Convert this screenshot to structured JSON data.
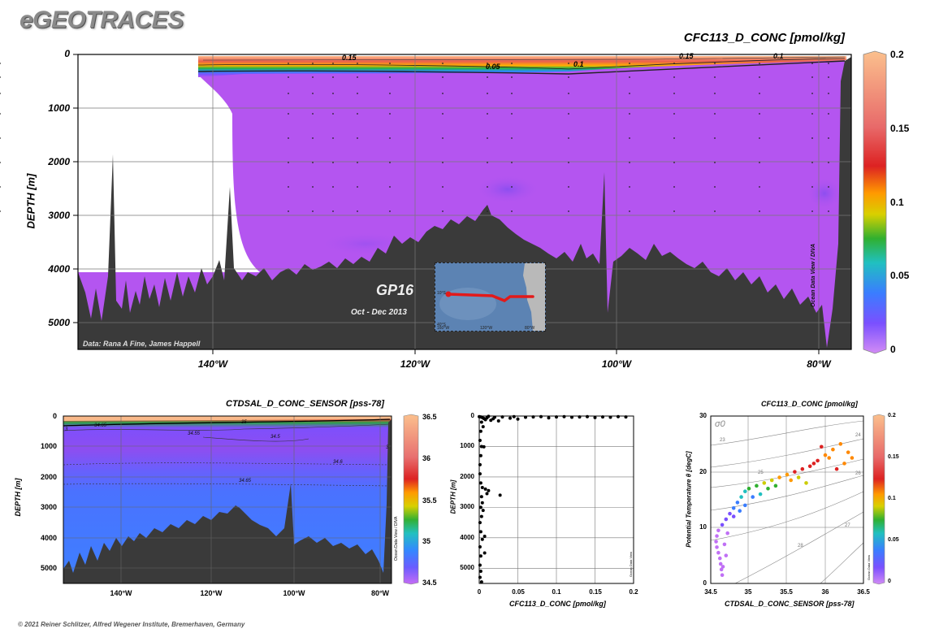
{
  "app": {
    "logo": "eGEOTRACES",
    "footer": "© 2021 Reiner Schlitzer, Alfred Wegener Institute, Bremerhaven, Germany"
  },
  "main_section": {
    "title": "CFC113_D_CONC [pmol/kg]",
    "ylabel": "DEPTH [m]",
    "credit": "Data: Rana A Fine, James Happell",
    "watermark": "Ocean Data View / DIVA",
    "y_ticks": [
      "0",
      "1000",
      "2000",
      "3000",
      "4000",
      "5000"
    ],
    "x_ticks": [
      "140°W",
      "120°W",
      "100°W",
      "80°W"
    ],
    "contour_labels": [
      "0.15",
      "0.05",
      "0.1",
      "0.15",
      "0.1"
    ],
    "cruise": "GP16",
    "period": "Oct - Dec 2013",
    "map_lat_labels": [
      "10°S",
      "40°S"
    ],
    "map_lon_labels": [
      "160°W",
      "120°W",
      "80°W"
    ],
    "colorbar_ticks": [
      "0.2",
      "0.15",
      "0.1",
      "0.05",
      "0"
    ],
    "colors": {
      "high": "#f9b98a",
      "mid": "#cc2222",
      "low": "#b655ee",
      "seafloor": "#3a3a3a"
    }
  },
  "salinity_section": {
    "title": "CTDSAL_D_CONC_SENSOR [pss-78]",
    "ylabel": "DEPTH [m]",
    "watermark": "Ocean Data View / DIVA",
    "y_ticks": [
      "0",
      "1000",
      "2000",
      "3000",
      "4000",
      "5000"
    ],
    "x_ticks": [
      "140°W",
      "120°W",
      "100°W",
      "80°W"
    ],
    "contour_labels": [
      "34.65",
      "35",
      "34.55",
      "34.5",
      "34.6",
      "34.65",
      "3",
      "3"
    ],
    "colorbar_ticks": [
      "36.5",
      "36",
      "35.5",
      "35",
      "34.5"
    ]
  },
  "chart_data": [
    {
      "type": "scatter",
      "title": "",
      "xlabel": "CFC113_D_CONC [pmol/kg]",
      "ylabel": "DEPTH [m]",
      "watermark": "Ocean Data View",
      "xlim": [
        0,
        0.2
      ],
      "ylim": [
        5500,
        0
      ],
      "x_ticks": [
        "0",
        "0.05",
        "0.1",
        "0.15",
        "0.2"
      ],
      "y_ticks": [
        "0",
        "1000",
        "2000",
        "3000",
        "4000",
        "5000"
      ],
      "points": [
        [
          0.0,
          20
        ],
        [
          0.002,
          30
        ],
        [
          0.004,
          50
        ],
        [
          0.006,
          80
        ],
        [
          0.008,
          120
        ],
        [
          0.01,
          60
        ],
        [
          0.012,
          10
        ],
        [
          0.015,
          140
        ],
        [
          0.018,
          90
        ],
        [
          0.02,
          40
        ],
        [
          0.025,
          160
        ],
        [
          0.03,
          30
        ],
        [
          0.04,
          70
        ],
        [
          0.045,
          20
        ],
        [
          0.05,
          100
        ],
        [
          0.06,
          40
        ],
        [
          0.07,
          30
        ],
        [
          0.08,
          20
        ],
        [
          0.09,
          60
        ],
        [
          0.1,
          30
        ],
        [
          0.11,
          20
        ],
        [
          0.12,
          40
        ],
        [
          0.13,
          30
        ],
        [
          0.14,
          20
        ],
        [
          0.15,
          50
        ],
        [
          0.16,
          30
        ],
        [
          0.17,
          40
        ],
        [
          0.18,
          20
        ],
        [
          0.19,
          30
        ],
        [
          0.003,
          200
        ],
        [
          0.005,
          350
        ],
        [
          0.002,
          500
        ],
        [
          0.001,
          800
        ],
        [
          0.003,
          1000
        ],
        [
          0.006,
          1010
        ],
        [
          0.002,
          1300
        ],
        [
          0.001,
          1600
        ],
        [
          0.001,
          1900
        ],
        [
          0.002,
          2200
        ],
        [
          0.004,
          2350
        ],
        [
          0.008,
          2400
        ],
        [
          0.012,
          2450
        ],
        [
          0.01,
          2550
        ],
        [
          0.003,
          2650
        ],
        [
          0.027,
          2600
        ],
        [
          0.004,
          2850
        ],
        [
          0.002,
          3000
        ],
        [
          0.005,
          3100
        ],
        [
          0.003,
          3300
        ],
        [
          0.001,
          3500
        ],
        [
          0.002,
          3800
        ],
        [
          0.007,
          3950
        ],
        [
          0.004,
          4050
        ],
        [
          0.001,
          4300
        ],
        [
          0.002,
          4600
        ],
        [
          0.001,
          4900
        ],
        [
          0.002,
          5100
        ],
        [
          0.001,
          5300
        ],
        [
          0.003,
          5450
        ],
        [
          0.007,
          4500
        ]
      ]
    },
    {
      "type": "scatter",
      "title": "CFC113_D_CONC [pmol/kg]",
      "xlabel": "CTDSAL_D_CONC_SENSOR [pss-78]",
      "ylabel": "Potential Temperature θ [degC]",
      "watermark": "Ocean Data View",
      "isopycnal_symbol": "σ0",
      "isopycnal_labels": [
        "23",
        "24",
        "25",
        "26",
        "27",
        "28"
      ],
      "xlim": [
        34.5,
        36.5
      ],
      "ylim": [
        0,
        30
      ],
      "x_ticks": [
        "34.5",
        "35",
        "35.5",
        "36",
        "36.5"
      ],
      "y_ticks": [
        "0",
        "10",
        "20",
        "30"
      ],
      "colorbar_ticks": [
        "0.2",
        "0.15",
        "0.1",
        "0.05",
        "0"
      ],
      "points": [
        [
          34.65,
          1.5,
          0.0
        ],
        [
          34.64,
          2.5,
          0.0
        ],
        [
          34.63,
          3.5,
          0.0
        ],
        [
          34.62,
          4.5,
          0.0
        ],
        [
          34.6,
          5.5,
          0.0
        ],
        [
          34.58,
          6.5,
          0.0
        ],
        [
          34.57,
          7.5,
          0.01
        ],
        [
          34.58,
          8.5,
          0.01
        ],
        [
          34.6,
          9.5,
          0.01
        ],
        [
          34.65,
          10.5,
          0.02
        ],
        [
          34.7,
          11.5,
          0.02
        ],
        [
          34.75,
          12.5,
          0.03
        ],
        [
          34.8,
          13.5,
          0.04
        ],
        [
          34.85,
          14.5,
          0.05
        ],
        [
          34.9,
          15.5,
          0.06
        ],
        [
          34.95,
          16.5,
          0.07
        ],
        [
          35.0,
          17.0,
          0.08
        ],
        [
          35.1,
          17.5,
          0.09
        ],
        [
          35.2,
          18.0,
          0.1
        ],
        [
          35.3,
          18.5,
          0.11
        ],
        [
          35.4,
          19.0,
          0.12
        ],
        [
          35.5,
          19.5,
          0.13
        ],
        [
          35.6,
          20.0,
          0.14
        ],
        [
          35.7,
          20.5,
          0.15
        ],
        [
          35.8,
          21.0,
          0.15
        ],
        [
          35.9,
          22.0,
          0.16
        ],
        [
          36.0,
          23.0,
          0.17
        ],
        [
          36.1,
          24.0,
          0.17
        ],
        [
          36.2,
          25.0,
          0.18
        ],
        [
          36.3,
          23.5,
          0.18
        ],
        [
          35.95,
          24.5,
          0.16
        ],
        [
          36.05,
          22.5,
          0.17
        ],
        [
          35.85,
          21.5,
          0.14
        ],
        [
          35.65,
          19.0,
          0.1
        ],
        [
          35.35,
          17.5,
          0.08
        ],
        [
          35.15,
          16.0,
          0.06
        ],
        [
          34.95,
          14.0,
          0.04
        ],
        [
          34.8,
          12.0,
          0.03
        ],
        [
          34.72,
          9.0,
          0.01
        ],
        [
          34.68,
          7.0,
          0.0
        ],
        [
          34.7,
          5.0,
          0.0
        ],
        [
          34.66,
          3.0,
          0.0
        ],
        [
          36.35,
          22.5,
          0.19
        ],
        [
          36.25,
          21.5,
          0.18
        ],
        [
          36.15,
          20.5,
          0.16
        ],
        [
          35.75,
          18.0,
          0.11
        ],
        [
          35.55,
          18.5,
          0.12
        ],
        [
          35.25,
          17.0,
          0.09
        ],
        [
          35.05,
          15.5,
          0.05
        ],
        [
          34.88,
          13.0,
          0.04
        ]
      ]
    }
  ]
}
